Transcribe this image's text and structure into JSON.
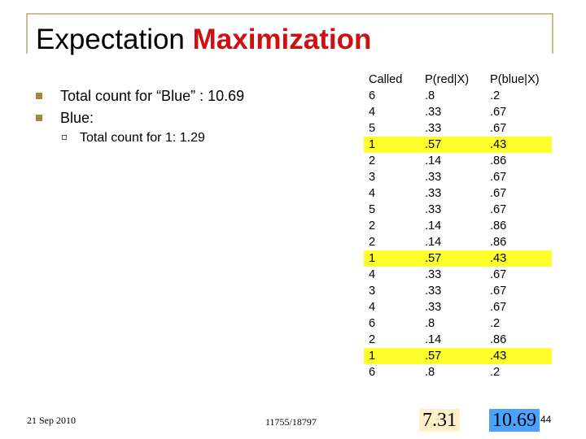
{
  "slide": {
    "title_plain": "Expectation ",
    "title_accent": "Maximization",
    "colors": {
      "accent": "#d01010",
      "frame": "#c9bf92",
      "bullet": "#a38a3d",
      "highlight": "#ffff2e",
      "total_red_bg": "#fff0c8",
      "total_blue_bg": "#4aa3ff"
    },
    "bullets": [
      {
        "icon": "square-bullet-icon",
        "text": "Total count for “Blue” : 10.69"
      },
      {
        "icon": "square-bullet-icon",
        "text": "Blue:"
      }
    ],
    "subbullets": [
      {
        "icon": "hollow-square-bullet-icon",
        "text": "Total count for 1:  1.29"
      }
    ],
    "table": {
      "headers": [
        "Called",
        "P(red|X)",
        "P(blue|X)"
      ],
      "rows": [
        {
          "called": "6",
          "red": ".8",
          "blue": ".2",
          "highlight": false
        },
        {
          "called": "4",
          "red": ".33",
          "blue": ".67",
          "highlight": false
        },
        {
          "called": "5",
          "red": ".33",
          "blue": ".67",
          "highlight": false
        },
        {
          "called": "1",
          "red": ".57",
          "blue": ".43",
          "highlight": true
        },
        {
          "called": "2",
          "red": ".14",
          "blue": ".86",
          "highlight": false
        },
        {
          "called": "3",
          "red": ".33",
          "blue": ".67",
          "highlight": false
        },
        {
          "called": "4",
          "red": ".33",
          "blue": ".67",
          "highlight": false
        },
        {
          "called": "5",
          "red": ".33",
          "blue": ".67",
          "highlight": false
        },
        {
          "called": "2",
          "red": ".14",
          "blue": ".86",
          "highlight": false
        },
        {
          "called": "2",
          "red": ".14",
          "blue": ".86",
          "highlight": false
        },
        {
          "called": "1",
          "red": ".57",
          "blue": ".43",
          "highlight": true
        },
        {
          "called": "4",
          "red": ".33",
          "blue": ".67",
          "highlight": false
        },
        {
          "called": "3",
          "red": ".33",
          "blue": ".67",
          "highlight": false
        },
        {
          "called": "4",
          "red": ".33",
          "blue": ".67",
          "highlight": false
        },
        {
          "called": "6",
          "red": ".8",
          "blue": ".2",
          "highlight": false
        },
        {
          "called": "2",
          "red": ".14",
          "blue": ".86",
          "highlight": false
        },
        {
          "called": "1",
          "red": ".57",
          "blue": ".43",
          "highlight": true
        },
        {
          "called": "6",
          "red": ".8",
          "blue": ".2",
          "highlight": false
        }
      ]
    },
    "totals": {
      "red": "7.31",
      "blue": "10.69"
    },
    "footer": {
      "date": "21 Sep 2010",
      "course": "11755/18797",
      "page": "44"
    }
  }
}
